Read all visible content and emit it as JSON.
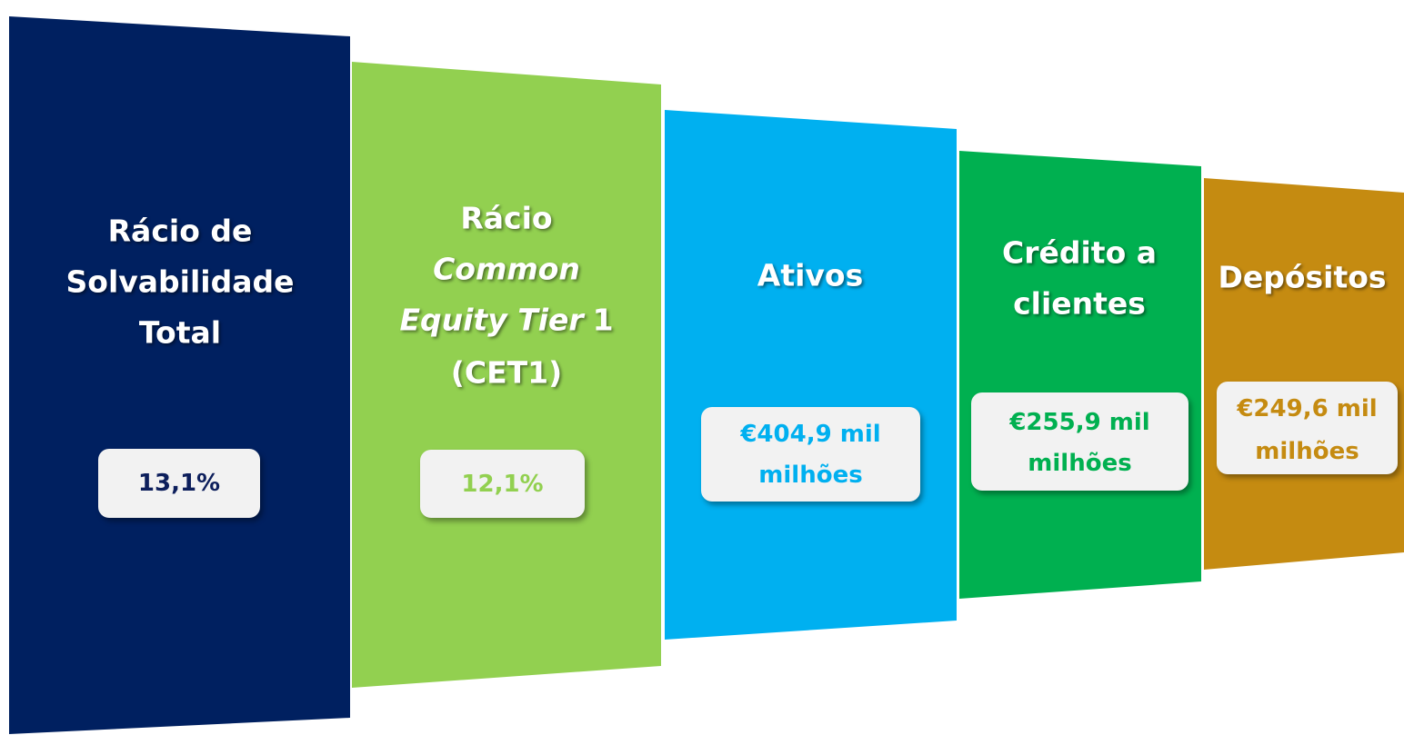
{
  "panels": [
    {
      "color": "#002060",
      "value_color": "#0d1f5c",
      "title_lines": [
        [
          {
            "text": "Rácio de"
          }
        ],
        [
          {
            "text": "Solvabilidade"
          }
        ],
        [
          {
            "text": "Total"
          }
        ]
      ],
      "value_lines": [
        "13,1%"
      ]
    },
    {
      "color": "#92d050",
      "value_color": "#92d050",
      "title_lines": [
        [
          {
            "text": "Rácio"
          }
        ],
        [
          {
            "text": "Common",
            "italic": true
          }
        ],
        [
          {
            "text": "Equity Tier",
            "italic": true
          },
          {
            "text": "1"
          }
        ],
        [
          {
            "text": "(CET1)"
          }
        ]
      ],
      "value_lines": [
        "12,1%"
      ]
    },
    {
      "color": "#00b0f0",
      "value_color": "#00b0f0",
      "title_lines": [
        [
          {
            "text": "Ativos"
          }
        ]
      ],
      "value_lines": [
        "€404,9 mil",
        "milhões"
      ]
    },
    {
      "color": "#00b050",
      "value_color": "#00b050",
      "title_lines": [
        [
          {
            "text": "Crédito a"
          }
        ],
        [
          {
            "text": "clientes"
          }
        ]
      ],
      "value_lines": [
        "€255,9 mil",
        "milhões"
      ]
    },
    {
      "color": "#c58b11",
      "value_color": "#c58b11",
      "title_lines": [
        [
          {
            "text": "Depósitos"
          }
        ]
      ],
      "value_lines": [
        "€249,6 mil",
        "milhões"
      ]
    }
  ]
}
